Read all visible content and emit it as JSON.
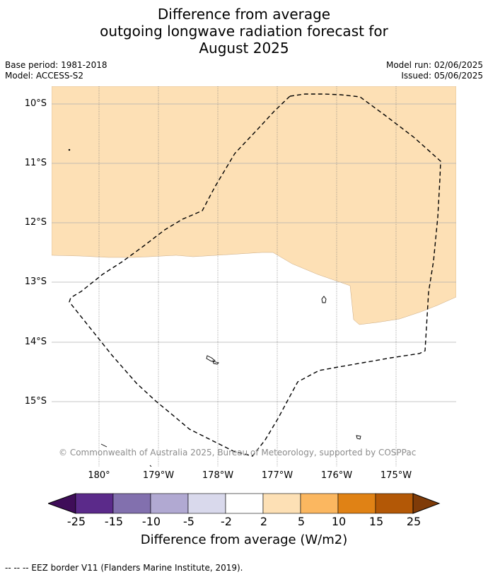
{
  "title": {
    "line1": "Difference from average",
    "line2": "outgoing longwave radiation forecast for",
    "line3": "August 2025"
  },
  "meta": {
    "base_period": "Base period: 1981-2018",
    "model": "Model: ACCESS-S2",
    "model_run": "Model run: 02/06/2025",
    "issued": "Issued: 05/06/2025"
  },
  "map": {
    "lat_labels": [
      "10°S",
      "11°S",
      "12°S",
      "13°S",
      "14°S",
      "15°S"
    ],
    "lon_labels": [
      "180°",
      "179°W",
      "178°W",
      "177°W",
      "176°W",
      "175°W"
    ],
    "fill_category": "2 to 5",
    "fill_color": "#fde0b5",
    "eez_line_style": "dashed",
    "copyright": "© Commonwealth of Australia 2025, Bureau of Meteorology, supported by COSPPac"
  },
  "colorbar": {
    "colors": [
      "#3f0d59",
      "#5b2a8a",
      "#8270ae",
      "#b1a9d2",
      "#d9d9ec",
      "#ffffff",
      "#fde0b5",
      "#fbb760",
      "#e08215",
      "#b35806",
      "#7f3b08"
    ],
    "ticks": [
      "-25",
      "-15",
      "-10",
      "-5",
      "-2",
      "2",
      "5",
      "10",
      "15",
      "25"
    ],
    "label": "Difference from average (W/m2)"
  },
  "footnote": "--  --  -- EEZ border V11 (Flanders Marine Institute, 2019)."
}
